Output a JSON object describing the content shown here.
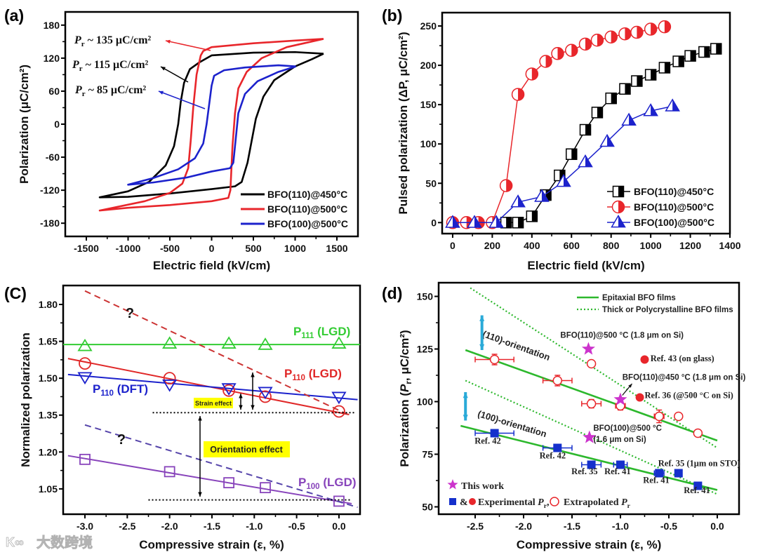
{
  "watermark": {
    "text": "大数跨境",
    "logo": "K∞"
  },
  "chart_data": [
    {
      "panel_label": "(a)",
      "type": "line",
      "xlabel": "Electric field (kV/cm)",
      "ylabel": "Polarization (μC/cm²)",
      "xlim": [
        -1752,
        1752
      ],
      "ylim": [
        -204,
        204
      ],
      "xticks": [
        -1500,
        -1000,
        -500,
        0,
        500,
        1000,
        1500
      ],
      "xtick_labels": [
        "-1500",
        "-1000",
        "-500",
        "0",
        "500",
        "1000",
        "1500"
      ],
      "yticks": [
        -180,
        -120,
        -60,
        0,
        60,
        120,
        180
      ],
      "ytick_labels": [
        "-180",
        "-120",
        "-60",
        "0",
        "60",
        "120",
        "180"
      ],
      "grid": false,
      "legend_position": "bottom-right",
      "series": [
        {
          "name": "BFO(110)@450°C",
          "color": "#000000",
          "points": [
            [
              1340,
              128
            ],
            [
              1000,
              131
            ],
            [
              500,
              130
            ],
            [
              0,
              125
            ],
            [
              -150,
              112
            ],
            [
              -260,
              100
            ],
            [
              -330,
              75
            ],
            [
              -370,
              40
            ],
            [
              -400,
              0
            ],
            [
              -450,
              -40
            ],
            [
              -550,
              -75
            ],
            [
              -750,
              -105
            ],
            [
              -1000,
              -122
            ],
            [
              -1340,
              -133
            ],
            [
              -1000,
              -132
            ],
            [
              -500,
              -126
            ],
            [
              0,
              -118
            ],
            [
              280,
              -113
            ],
            [
              360,
              -105
            ],
            [
              430,
              -70
            ],
            [
              480,
              -30
            ],
            [
              530,
              10
            ],
            [
              620,
              50
            ],
            [
              750,
              80
            ],
            [
              1000,
              105
            ],
            [
              1200,
              118
            ],
            [
              1340,
              128
            ]
          ]
        },
        {
          "name": "BFO(110)@500°C",
          "color": "#e8262b",
          "points": [
            [
              1340,
              155
            ],
            [
              1000,
              152
            ],
            [
              500,
              147
            ],
            [
              0,
              140
            ],
            [
              -100,
              133
            ],
            [
              -130,
              125
            ],
            [
              -180,
              90
            ],
            [
              -220,
              30
            ],
            [
              -250,
              -30
            ],
            [
              -280,
              -80
            ],
            [
              -350,
              -108
            ],
            [
              -500,
              -125
            ],
            [
              -800,
              -140
            ],
            [
              -1340,
              -157
            ],
            [
              -1000,
              -152
            ],
            [
              -500,
              -147
            ],
            [
              0,
              -140
            ],
            [
              200,
              -134
            ],
            [
              225,
              -120
            ],
            [
              250,
              -40
            ],
            [
              280,
              20
            ],
            [
              320,
              65
            ],
            [
              420,
              95
            ],
            [
              600,
              120
            ],
            [
              900,
              140
            ],
            [
              1340,
              155
            ]
          ]
        },
        {
          "name": "BFO(100)@500°C",
          "color": "#1c22cc",
          "points": [
            [
              1010,
              105
            ],
            [
              800,
              107
            ],
            [
              400,
              103
            ],
            [
              150,
              98
            ],
            [
              30,
              88
            ],
            [
              0,
              70
            ],
            [
              -30,
              35
            ],
            [
              -60,
              0
            ],
            [
              -100,
              -35
            ],
            [
              -200,
              -62
            ],
            [
              -400,
              -82
            ],
            [
              -700,
              -98
            ],
            [
              -1000,
              -110
            ],
            [
              -700,
              -106
            ],
            [
              -300,
              -97
            ],
            [
              0,
              -86
            ],
            [
              220,
              -80
            ],
            [
              260,
              -70
            ],
            [
              290,
              -25
            ],
            [
              320,
              20
            ],
            [
              400,
              55
            ],
            [
              550,
              78
            ],
            [
              800,
              95
            ],
            [
              1010,
              105
            ]
          ]
        }
      ],
      "annotations": [
        {
          "main": "P",
          "sub": "r",
          "rest": " ~ 135 μC/cm²",
          "color": "#e8262b"
        },
        {
          "main": "P",
          "sub": "r",
          "rest": " ~ 115 μC/cm²",
          "color": "#000000"
        },
        {
          "main": "P",
          "sub": "r",
          "rest": " ~ 85 μC/cm²",
          "color": "#1c22cc"
        }
      ]
    },
    {
      "panel_label": "(b)",
      "type": "line",
      "xlabel": "Electric field (kV/cm)",
      "ylabel": "Pulsed polarization (ΔP, μC/cm²)",
      "xlim": [
        -53,
        1400
      ],
      "ylim": [
        -14,
        267
      ],
      "xticks": [
        0,
        200,
        400,
        600,
        800,
        1000,
        1200,
        1400
      ],
      "xtick_labels": [
        "0",
        "200",
        "400",
        "600",
        "800",
        "1000",
        "1200",
        "1400"
      ],
      "yticks": [
        0,
        50,
        100,
        150,
        200,
        250
      ],
      "ytick_labels": [
        "0",
        "50",
        "100",
        "150",
        "200",
        "250"
      ],
      "grid": false,
      "legend_position": "bottom-right",
      "series": [
        {
          "name": "BFO(110)@450°C",
          "color": "#000000",
          "marker": "half-square",
          "x": [
            270,
            330,
            400,
            470,
            540,
            600,
            670,
            730,
            800,
            870,
            930,
            1000,
            1070,
            1140,
            1200,
            1270,
            1330
          ],
          "y": [
            0,
            0,
            8,
            35,
            60,
            87,
            118,
            140,
            158,
            170,
            180,
            188,
            197,
            205,
            212,
            217,
            221
          ]
        },
        {
          "name": "BFO(110)@500°C",
          "color": "#e8262b",
          "marker": "half-circle",
          "x": [
            0,
            70,
            130,
            200,
            270,
            330,
            400,
            470,
            530,
            600,
            670,
            730,
            800,
            870,
            930,
            1000,
            1070
          ],
          "y": [
            0,
            0,
            0,
            0,
            47,
            163,
            189,
            205,
            215,
            219,
            227,
            232,
            236,
            240,
            242,
            246,
            249
          ]
        },
        {
          "name": "BFO(100)@500°C",
          "color": "#1c22cc",
          "marker": "half-triangle",
          "x": [
            0,
            110,
            220,
            330,
            450,
            560,
            670,
            780,
            890,
            1000,
            1110
          ],
          "y": [
            0,
            0,
            0,
            26,
            33,
            52,
            77,
            103,
            130,
            142,
            148
          ]
        }
      ]
    },
    {
      "panel_label": "(C)",
      "type": "line",
      "xlabel": "Compressive strain (ε, %)",
      "ylabel": "Normalized polarization",
      "xlim": [
        -3.257,
        0.249
      ],
      "ylim": [
        0.947,
        1.877
      ],
      "xticks": [
        -3.0,
        -2.5,
        -2.0,
        -1.5,
        -1.0,
        -0.5,
        0.0
      ],
      "xtick_labels": [
        "-3.0",
        "-2.5",
        "-2.0",
        "-1.5",
        "-1.0",
        "-0.5",
        "0.0"
      ],
      "yticks": [
        1.05,
        1.2,
        1.35,
        1.5,
        1.65,
        1.8
      ],
      "ytick_labels": [
        "1.05",
        "1.20",
        "1.35",
        "1.50",
        "1.65",
        "1.80"
      ],
      "grid": false,
      "lines": [
        {
          "name": "P111 LGD fit",
          "color": "#33cc33",
          "dash": "",
          "points": [
            [
              -3.257,
              1.637
            ],
            [
              0.249,
              1.637
            ]
          ]
        },
        {
          "name": "P110 LGD fit",
          "color": "#e02828",
          "dash": "",
          "points": [
            [
              -3.2,
              1.58
            ],
            [
              0.12,
              1.352
            ]
          ]
        },
        {
          "name": "P110 DFT fit",
          "color": "#1c22cc",
          "dash": "",
          "points": [
            [
              -3.2,
              1.515
            ],
            [
              0.22,
              1.413
            ]
          ]
        },
        {
          "name": "P100 LGD fit",
          "color": "#8844bb",
          "dash": "",
          "points": [
            [
              -3.2,
              1.185
            ],
            [
              0.15,
              0.99
            ]
          ]
        },
        {
          "name": "P110 extrapolated",
          "color": "#cc3333",
          "dash": "9,6",
          "points": [
            [
              -3.0,
              1.855
            ],
            [
              0.12,
              1.35
            ]
          ]
        },
        {
          "name": "P100 extrapolated",
          "color": "#5544aa",
          "dash": "9,6",
          "points": [
            [
              -3.0,
              1.31
            ],
            [
              0.22,
              0.975
            ]
          ]
        },
        {
          "name": "reference 110",
          "color": "#000000",
          "dash": "2,3",
          "points": [
            [
              -2.2,
              1.36
            ],
            [
              0.2,
              1.36
            ]
          ]
        },
        {
          "name": "reference 100",
          "color": "#000000",
          "dash": "2,3",
          "points": [
            [
              -2.25,
              1.005
            ],
            [
              0.13,
              1.005
            ]
          ]
        }
      ],
      "markers": [
        {
          "name": "P111 (LGD)",
          "color": "#33cc33",
          "shape": "triangle-up",
          "x": [
            -3,
            -2,
            -1.3,
            -0.87,
            0
          ],
          "y": [
            1.63,
            1.64,
            1.64,
            1.635,
            1.64
          ]
        },
        {
          "name": "P110 (LGD)",
          "color": "#e02828",
          "shape": "circle",
          "x": [
            -3,
            -2,
            -1.3,
            -0.87,
            0
          ],
          "y": [
            1.56,
            1.5,
            1.45,
            1.425,
            1.365
          ]
        },
        {
          "name": "P110 (DFT)",
          "color": "#1c22cc",
          "shape": "triangle-down",
          "x": [
            -3,
            -2,
            -1.3,
            -0.87,
            0
          ],
          "y": [
            1.505,
            1.475,
            1.46,
            1.445,
            1.425
          ]
        },
        {
          "name": "P100 (LGD)",
          "color": "#8844bb",
          "shape": "square",
          "x": [
            -3,
            -2,
            -1.3,
            -0.87,
            0
          ],
          "y": [
            1.17,
            1.12,
            1.075,
            1.055,
            1.0
          ]
        }
      ],
      "labels": [
        {
          "main": "P",
          "sub": "111",
          "rest": " (LGD)",
          "color": "#33cc33"
        },
        {
          "main": "P",
          "sub": "110",
          "rest": " (LGD)",
          "color": "#e02828"
        },
        {
          "main": "P",
          "sub": "110",
          "rest": " (DFT)",
          "color": "#1c22cc"
        },
        {
          "main": "P",
          "sub": "100",
          "rest": " (LGD)",
          "color": "#8844bb"
        }
      ],
      "question_marks": [
        "?",
        "?"
      ],
      "strain_effect": "Strain effect",
      "orientation_effect": "Orientation effect",
      "highlight_color": "#ffff00"
    },
    {
      "panel_label": "(d)",
      "type": "scatter",
      "xlabel": "Compressive strain (ε, %)",
      "ylabel": {
        "pre": "Polarization (",
        "main": "P",
        "sub": "r",
        "rest": ", μC/cm²)"
      },
      "xlim": [
        -2.877,
        0.225
      ],
      "ylim": [
        46.5,
        156.5
      ],
      "xticks": [
        -2.5,
        -2.0,
        -1.5,
        -1.0,
        -0.5,
        0.0
      ],
      "xtick_labels": [
        "-2.5",
        "-2.0",
        "-1.5",
        "-1.0",
        "-0.5",
        "0.0"
      ],
      "yticks": [
        50,
        75,
        100,
        125,
        150
      ],
      "ytick_labels": [
        "50",
        "75",
        "100",
        "125",
        "150"
      ],
      "grid": false,
      "legend": [
        "Epitaxial BFO films",
        "Thick or Polycrystalline BFO films"
      ],
      "legend_position": "top-right",
      "fit_lines": [
        {
          "name": "(110) epitaxial",
          "style": "solid",
          "points": [
            [
              -2.6,
              124.5
            ],
            [
              0,
              81.5
            ]
          ]
        },
        {
          "name": "(100) epitaxial",
          "style": "solid",
          "points": [
            [
              -2.65,
              88.5
            ],
            [
              0,
              58
            ]
          ]
        },
        {
          "name": "(110) thick",
          "style": "dotted",
          "points": [
            [
              -2.55,
              154
            ],
            [
              0,
              78
            ]
          ]
        },
        {
          "name": "(100) thick",
          "style": "dotted",
          "points": [
            [
              -2.6,
              110
            ],
            [
              0,
              56
            ]
          ]
        }
      ],
      "line_color": "#2db82d",
      "extrapolated_110": [
        {
          "x": -2.3,
          "y": 120,
          "xerr": 0.2,
          "yerr": 2.5
        },
        {
          "x": -1.65,
          "y": 110,
          "xerr": 0.15,
          "yerr": 2.5
        },
        {
          "x": -1.3,
          "y": 99,
          "xerr": 0.1,
          "yerr": 2
        },
        {
          "x": -1.0,
          "y": 98,
          "xerr": 0.05,
          "yerr": 2
        },
        {
          "x": -0.6,
          "y": 93,
          "xerr": 0.05,
          "yerr": 3
        },
        {
          "x": -0.4,
          "y": 93,
          "xerr": 0,
          "yerr": 0
        },
        {
          "x": -0.2,
          "y": 85,
          "xerr": 0,
          "yerr": 0
        },
        {
          "x": -1.3,
          "y": 118,
          "xerr": 0,
          "yerr": 0
        }
      ],
      "experimental_110": [
        {
          "x": -0.75,
          "y": 120,
          "label": "Ref. 43 (on glass)"
        },
        {
          "x": -0.8,
          "y": 102,
          "label": "Ref. 36 (@500 °C on Si)"
        }
      ],
      "experimental_100": [
        {
          "x": -2.3,
          "y": 85,
          "xerr": 0.2,
          "label": "Ref. 42"
        },
        {
          "x": -1.65,
          "y": 78,
          "xerr": 0.15,
          "label": "Ref. 42"
        },
        {
          "x": -1.3,
          "y": 70,
          "xerr": 0.1,
          "label": "Ref. 35"
        },
        {
          "x": -1.0,
          "y": 70,
          "xerr": 0.07,
          "label": "Ref. 41"
        },
        {
          "x": -0.6,
          "y": 66,
          "xerr": 0.05,
          "label": "Ref. 41"
        },
        {
          "x": -0.4,
          "y": 66,
          "xerr": 0,
          "label": "Ref. 35 (1μm on STO)"
        },
        {
          "x": -0.2,
          "y": 60,
          "xerr": 0,
          "label": "Ref. 41"
        }
      ],
      "this_work": [
        {
          "x": -1.33,
          "y": 125,
          "label": "BFO(110)@500 °C (1.8 μm on Si)"
        },
        {
          "x": -1.0,
          "y": 101,
          "label": "BFO(110)@450 °C (1.8 μm on Si)"
        },
        {
          "x": -1.32,
          "y": 83,
          "label": "BFO(100)@500 °C",
          "label2": "(1.6 μm on Si)"
        }
      ],
      "orientation_labels": [
        "(110)-orientation",
        "(100)-orientation"
      ],
      "bottom_legend": {
        "this_work": "This work",
        "amp": "&",
        "experimental": {
          "main": "Experimental ",
          "it": "P",
          "sub": "r",
          "rest": ","
        },
        "extrapolated": {
          "main": "Extrapolated ",
          "it": "P",
          "sub": "r",
          "rest": ""
        }
      },
      "colors": {
        "red": "#e8262b",
        "blue": "#1530cc",
        "star": "#cc33cc",
        "arrow": "#2aaad8"
      }
    }
  ]
}
